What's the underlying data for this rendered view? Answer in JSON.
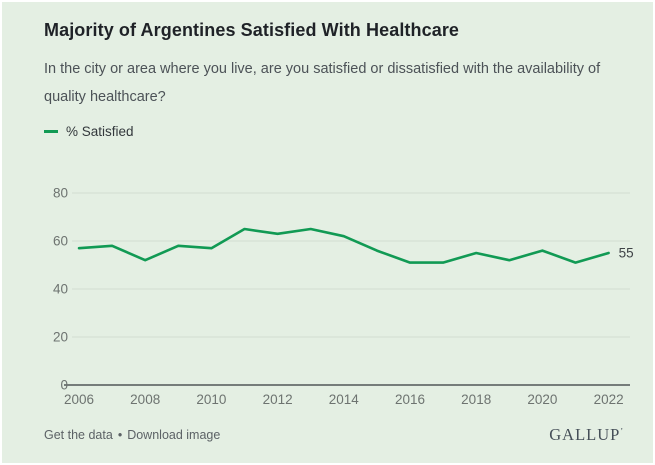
{
  "header": {
    "title": "Majority of Argentines Satisfied With Healthcare",
    "subtitle": "In the city or area where you live, are you satisfied or dissatisfied with the availability of quality healthcare?"
  },
  "legend": {
    "label": "% Satisfied",
    "color": "#119a54"
  },
  "chart_data": {
    "type": "line",
    "title": "Majority of Argentines Satisfied With Healthcare",
    "x": [
      2006,
      2007,
      2008,
      2009,
      2010,
      2011,
      2012,
      2013,
      2014,
      2015,
      2016,
      2017,
      2018,
      2019,
      2020,
      2021,
      2022
    ],
    "series": [
      {
        "name": "% Satisfied",
        "color": "#119a54",
        "values": [
          57,
          58,
          52,
          58,
          57,
          65,
          63,
          65,
          62,
          56,
          51,
          51,
          55,
          52,
          56,
          51,
          55
        ]
      }
    ],
    "end_label": "55",
    "x_tick_labels": [
      "2006",
      "2008",
      "2010",
      "2012",
      "2014",
      "2016",
      "2018",
      "2020",
      "2022"
    ],
    "y_ticks": [
      0,
      20,
      40,
      60,
      80
    ],
    "ylim": [
      0,
      88
    ],
    "grid": true,
    "legend_position": "top-left",
    "colors": {
      "grid_line": "#d2ddd0",
      "zero_axis": "#33383c",
      "tick_label": "#6d7370",
      "end_label": "#3f4347"
    }
  },
  "footer": {
    "link_get_data": "Get the data",
    "separator": "•",
    "link_download": "Download image",
    "brand": "GALLUP",
    "brand_mark": "’"
  }
}
